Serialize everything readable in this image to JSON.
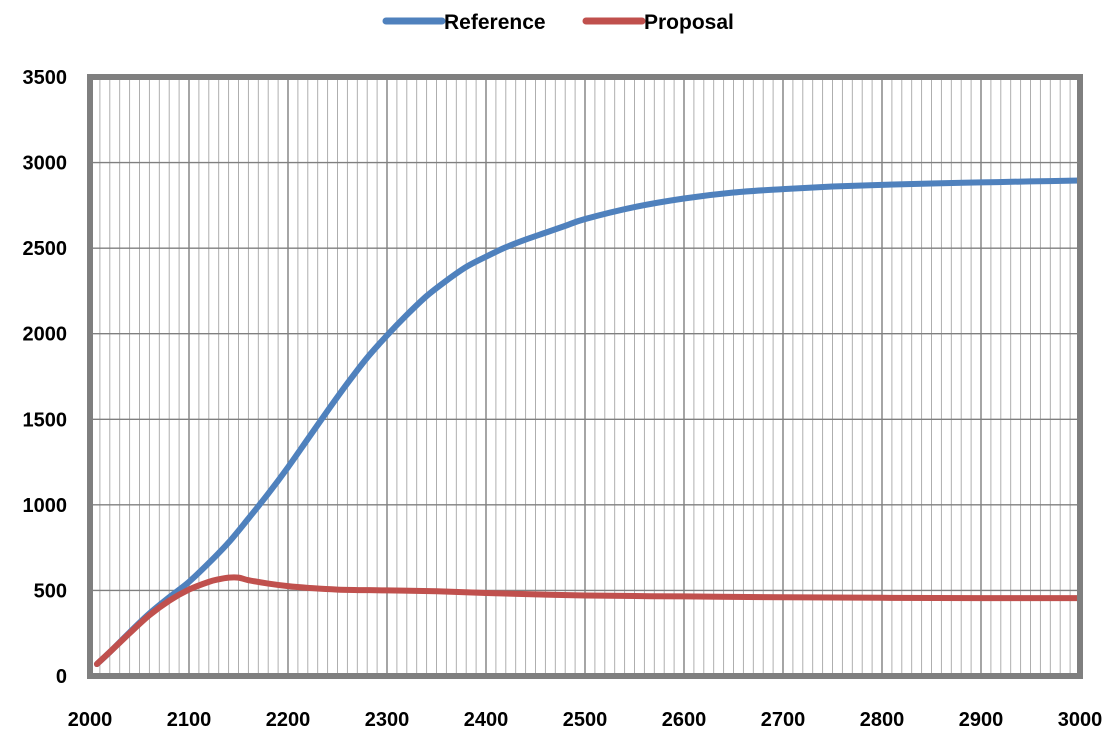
{
  "chart_data": {
    "type": "line",
    "title": "",
    "xlabel": "",
    "ylabel": "",
    "xlim": [
      2000,
      3000
    ],
    "ylim": [
      0,
      3500
    ],
    "x_ticks": [
      2000,
      2100,
      2200,
      2300,
      2400,
      2500,
      2600,
      2700,
      2800,
      2900,
      3000
    ],
    "y_ticks": [
      0,
      500,
      1000,
      1500,
      2000,
      2500,
      3000,
      3500
    ],
    "x_minor_step": 10,
    "y_major_step": 500,
    "grid": true,
    "legend_position": "top-center",
    "series": [
      {
        "name": "Reference",
        "color": "#4F81BD",
        "x": [
          2007,
          2020,
          2040,
          2060,
          2080,
          2100,
          2120,
          2140,
          2160,
          2180,
          2200,
          2220,
          2240,
          2260,
          2280,
          2300,
          2320,
          2340,
          2360,
          2380,
          2400,
          2420,
          2440,
          2460,
          2480,
          2500,
          2550,
          2600,
          2650,
          2700,
          2750,
          2800,
          2850,
          2900,
          2950,
          3000
        ],
        "y": [
          70,
          140,
          255,
          365,
          460,
          550,
          660,
          780,
          920,
          1065,
          1220,
          1385,
          1550,
          1710,
          1860,
          1990,
          2110,
          2220,
          2310,
          2390,
          2450,
          2505,
          2550,
          2590,
          2630,
          2670,
          2740,
          2790,
          2825,
          2845,
          2860,
          2870,
          2878,
          2884,
          2890,
          2895
        ]
      },
      {
        "name": "Proposal",
        "color": "#C0504D",
        "x": [
          2007,
          2020,
          2040,
          2060,
          2080,
          2100,
          2120,
          2130,
          2140,
          2150,
          2160,
          2180,
          2200,
          2220,
          2250,
          2300,
          2350,
          2400,
          2500,
          2600,
          2700,
          2800,
          2900,
          3000
        ],
        "y": [
          70,
          140,
          250,
          355,
          440,
          505,
          550,
          565,
          575,
          575,
          560,
          540,
          525,
          515,
          505,
          500,
          495,
          485,
          470,
          465,
          460,
          457,
          455,
          455
        ]
      }
    ]
  }
}
